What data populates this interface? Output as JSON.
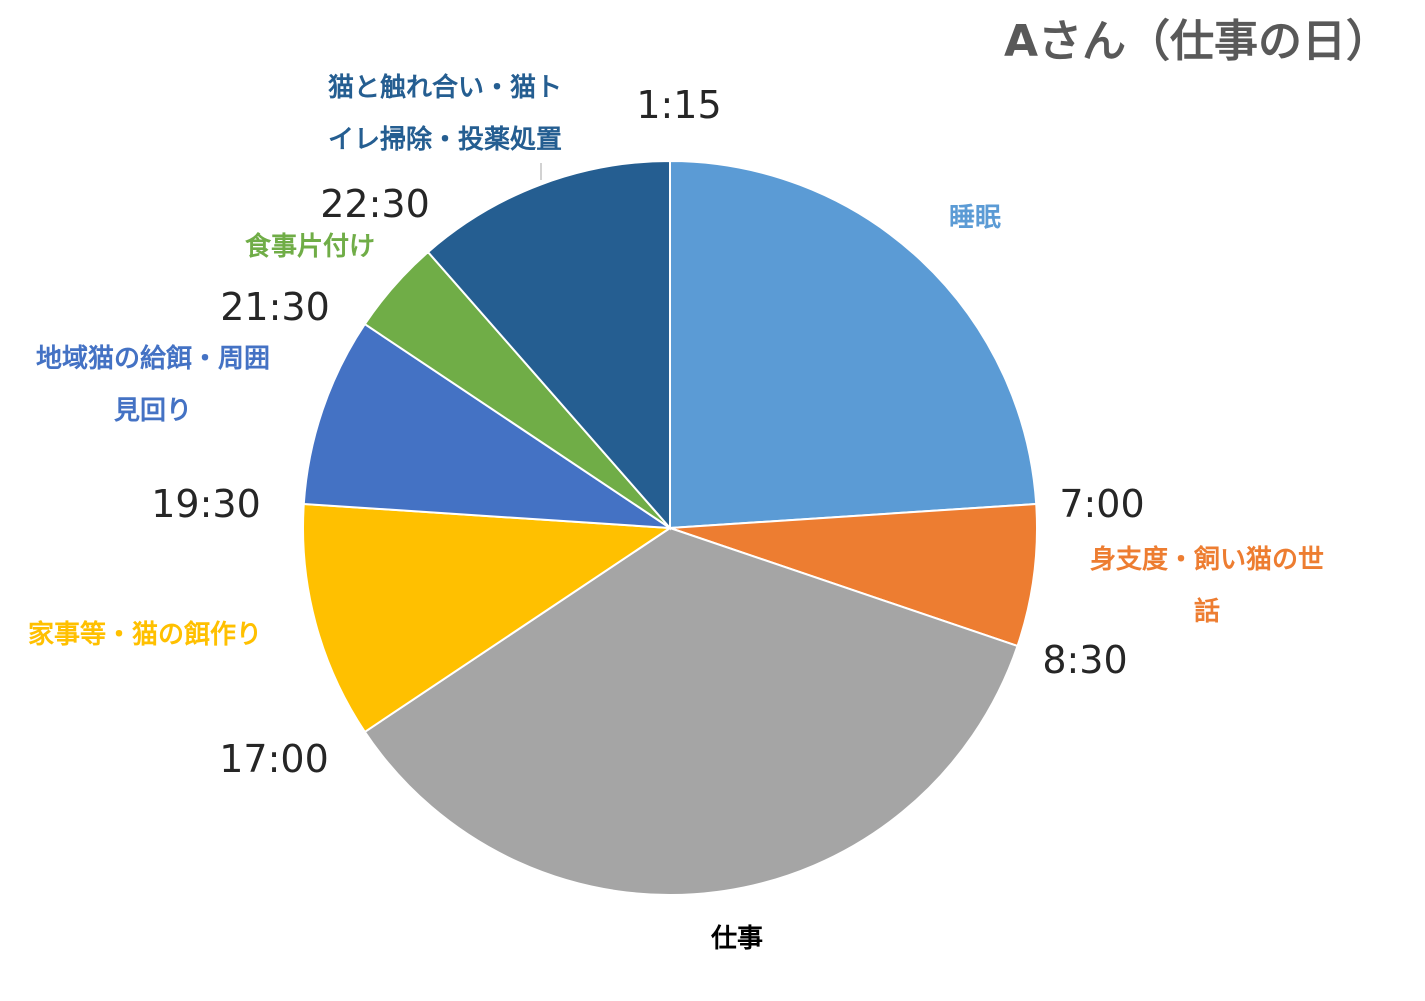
{
  "chart_data": {
    "type": "pie",
    "title": "Aさん（仕事の日）",
    "start_time": "1:15",
    "slices": [
      {
        "name": "睡眠",
        "label_lines": [
          "睡眠"
        ],
        "value": 5.75,
        "end_time": "7:00",
        "color": "#5B9BD5"
      },
      {
        "name": "身支度・飼い猫の世話",
        "label_lines": [
          "身支度・飼い猫の世",
          "話"
        ],
        "value": 1.5,
        "end_time": "8:30",
        "color": "#ED7D31"
      },
      {
        "name": "仕事",
        "label_lines": [
          "仕事"
        ],
        "value": 8.5,
        "end_time": "17:00",
        "color": "#A5A5A5"
      },
      {
        "name": "家事等・猫の餌作り",
        "label_lines": [
          "家事等・猫の餌作り"
        ],
        "value": 2.5,
        "end_time": "19:30",
        "color": "#FFC000"
      },
      {
        "name": "地域猫の給餌・周囲見回り",
        "label_lines": [
          "地域猫の給餌・周囲",
          "見回り"
        ],
        "value": 2.0,
        "end_time": "21:30",
        "color": "#4472C4"
      },
      {
        "name": "食事片付け",
        "label_lines": [
          "食事片付け"
        ],
        "value": 1.0,
        "end_time": "22:30",
        "color": "#70AD47"
      },
      {
        "name": "猫と触れ合い・猫トイレ掃除・投薬処置",
        "label_lines": [
          "猫と触れ合い・猫ト",
          "イレ掃除・投薬処置"
        ],
        "value": 2.75,
        "end_time": "",
        "color": "#255E91"
      }
    ],
    "legend": "none"
  }
}
